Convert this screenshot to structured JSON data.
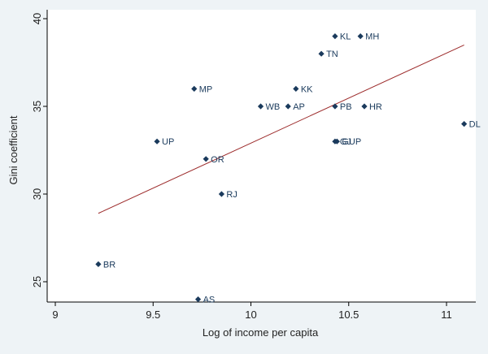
{
  "chart_data": {
    "type": "scatter",
    "title": "",
    "xlabel": "Log of income per capita",
    "ylabel": "Gini coefficient",
    "xlim": [
      9,
      11.1
    ],
    "ylim": [
      24,
      40
    ],
    "xticks": [
      9,
      9.5,
      10,
      10.5,
      11
    ],
    "xtick_labels": [
      "9",
      "9.5",
      "10",
      "10.5",
      "11"
    ],
    "yticks": [
      25,
      30,
      35,
      40
    ],
    "ytick_labels": [
      "25",
      "30",
      "35",
      "40"
    ],
    "grid": false,
    "legend": "none",
    "colors": {
      "points": "#1a3a5c",
      "fit_line": "#9c2a2a",
      "frame": "#eef3f6"
    },
    "points": [
      {
        "label": "KL",
        "x": 10.43,
        "y": 39
      },
      {
        "label": "MH",
        "x": 10.56,
        "y": 39
      },
      {
        "label": "TN",
        "x": 10.36,
        "y": 38
      },
      {
        "label": "MP",
        "x": 9.71,
        "y": 36
      },
      {
        "label": "KK",
        "x": 10.23,
        "y": 36
      },
      {
        "label": "WB",
        "x": 10.05,
        "y": 35
      },
      {
        "label": "AP",
        "x": 10.19,
        "y": 35
      },
      {
        "label": "PB",
        "x": 10.43,
        "y": 35
      },
      {
        "label": "HR",
        "x": 10.58,
        "y": 35
      },
      {
        "label": "DL",
        "x": 11.09,
        "y": 34
      },
      {
        "label": "UP",
        "x": 9.52,
        "y": 33
      },
      {
        "label": "GJ",
        "x": 10.43,
        "y": 33
      },
      {
        "label": "GUP",
        "x": 10.44,
        "y": 33
      },
      {
        "label": "OR",
        "x": 9.77,
        "y": 32
      },
      {
        "label": "RJ",
        "x": 9.85,
        "y": 30
      },
      {
        "label": "BR",
        "x": 9.22,
        "y": 26
      },
      {
        "label": "AS",
        "x": 9.73,
        "y": 24
      }
    ],
    "fit_line": {
      "x": [
        9.22,
        11.09
      ],
      "y": [
        28.9,
        38.5
      ]
    }
  }
}
